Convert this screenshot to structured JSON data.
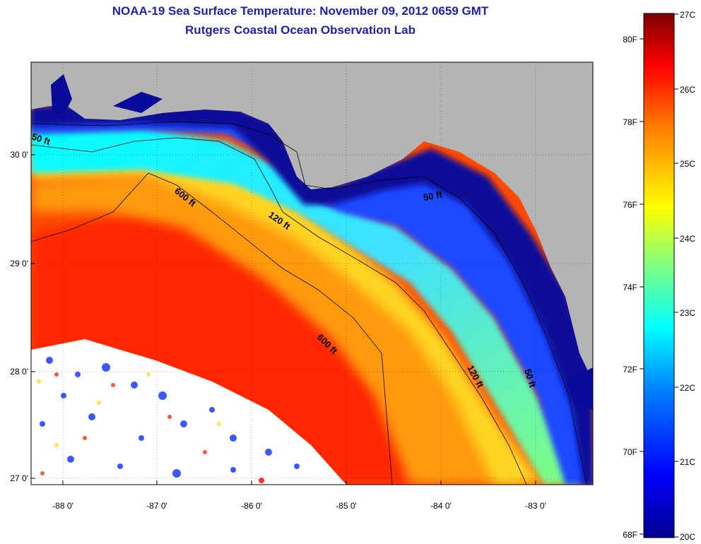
{
  "title": "NOAA-19 Sea Surface Temperature:  November 09, 2012 0659 GMT",
  "subtitle": "Rutgers Coastal Ocean Observation Lab",
  "map": {
    "region": "Gulf of Mexico - Florida Big Bend",
    "lon_ticks": [
      "-88 0'",
      "-87 0'",
      "-86 0'",
      "-85 0'",
      "-84 0'",
      "-83 0'"
    ],
    "lat_ticks": [
      "30 0'",
      "29 0'",
      "28 0'",
      "27 0'"
    ],
    "contours": [
      "50 ft",
      "600 ft",
      "120 ft",
      "50 ft",
      "600 ft",
      "120 ft",
      "50 ft"
    ],
    "colors": {
      "land": "#b4b4b4",
      "cloud": "#ffffff"
    }
  },
  "colorbar": {
    "celsius": [
      "27C",
      "26C",
      "25C",
      "24C",
      "23C",
      "22C",
      "21C",
      "20C"
    ],
    "fahrenheit": [
      "80F",
      "78F",
      "76F",
      "74F",
      "72F",
      "70F",
      "68F"
    ],
    "colormap": [
      "#00008f",
      "#0000ff",
      "#007fff",
      "#00ffff",
      "#7fff7f",
      "#ffff00",
      "#ff7f00",
      "#ff0000",
      "#7f0000"
    ]
  }
}
